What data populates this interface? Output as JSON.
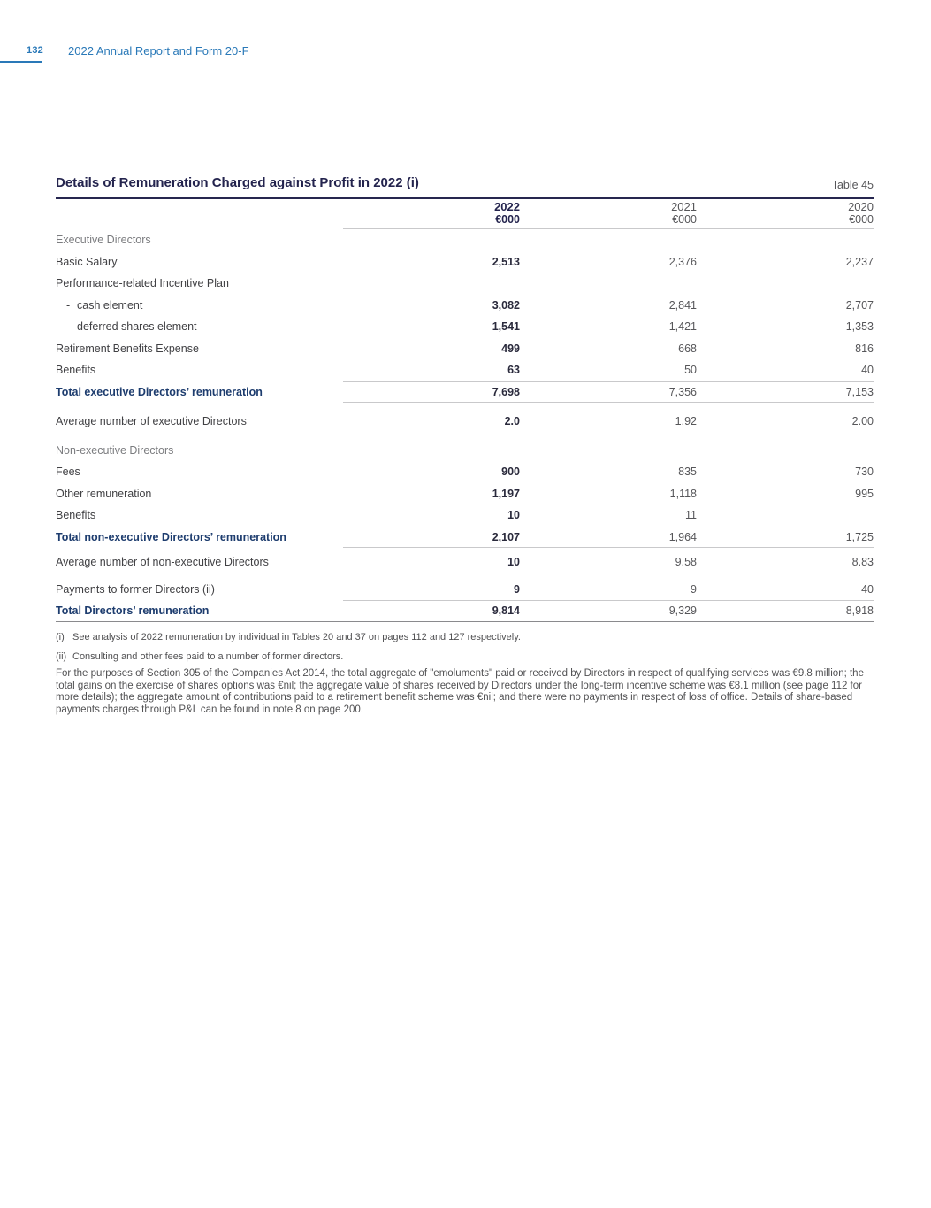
{
  "page": {
    "number": "132",
    "report_title": "2022 Annual Report and Form 20-F"
  },
  "colors": {
    "accent_blue": "#2a79b8",
    "navy": "#24244e",
    "total_navy": "#1d3c6e",
    "text_gray": "#565659",
    "rule_light": "#c9c9cb"
  },
  "table": {
    "title": "Details of Remuneration Charged against Profit in 2022 (i)",
    "table_ref": "Table 45",
    "columns": [
      {
        "year": "2022",
        "unit": "€000"
      },
      {
        "year": "2021",
        "unit": "€000"
      },
      {
        "year": "2020",
        "unit": "€000"
      }
    ],
    "rows": [
      {
        "type": "section",
        "label": "Executive Directors"
      },
      {
        "type": "data",
        "label": "Basic Salary",
        "v2022": "2,513",
        "v2021": "2,376",
        "v2020": "2,237"
      },
      {
        "type": "plain",
        "label": "Performance-related Incentive Plan"
      },
      {
        "type": "indent",
        "dash": "-",
        "label": "cash element",
        "v2022": "3,082",
        "v2021": "2,841",
        "v2020": "2,707"
      },
      {
        "type": "indent",
        "dash": "-",
        "label": "deferred shares element",
        "v2022": "1,541",
        "v2021": "1,421",
        "v2020": "1,353"
      },
      {
        "type": "data",
        "label": "Retirement Benefits Expense",
        "v2022": "499",
        "v2021": "668",
        "v2020": "816"
      },
      {
        "type": "data",
        "label": "Benefits",
        "v2022": "63",
        "v2021": "50",
        "v2020": "40"
      },
      {
        "type": "total",
        "label": "Total executive Directors’ remuneration",
        "v2022": "7,698",
        "v2021": "7,356",
        "v2020": "7,153"
      },
      {
        "type": "data",
        "label": "Average number of executive Directors",
        "v2022": "2.0",
        "v2021": "1.92",
        "v2020": "2.00"
      },
      {
        "type": "section",
        "label": "Non-executive Directors"
      },
      {
        "type": "data",
        "label": "Fees",
        "v2022": "900",
        "v2021": "835",
        "v2020": "730"
      },
      {
        "type": "data",
        "label": "Other remuneration",
        "v2022": "1,197",
        "v2021": "1,118",
        "v2020": "995"
      },
      {
        "type": "data",
        "label": "Benefits",
        "v2022": "10",
        "v2021": "11",
        "v2020": ""
      },
      {
        "type": "total",
        "label": "Total non-executive Directors’ remuneration",
        "v2022": "2,107",
        "v2021": "1,964",
        "v2020": "1,725"
      },
      {
        "type": "data",
        "label": "Average number of non-executive Directors",
        "v2022": "10",
        "v2021": "9.58",
        "v2020": "8.83"
      },
      {
        "type": "data",
        "label": "Payments to former Directors (ii)",
        "v2022": "9",
        "v2021": "9",
        "v2020": "40"
      },
      {
        "type": "total",
        "label": "Total Directors’ remuneration",
        "v2022": "9,814",
        "v2021": "9,329",
        "v2020": "8,918"
      }
    ]
  },
  "footnotes": [
    {
      "marker": "(i)",
      "text": "See analysis of 2022 remuneration by individual in Tables 20 and 37 on pages 112 and 127 respectively."
    },
    {
      "marker": "(ii)",
      "text": "Consulting and other fees paid to a number of former directors."
    }
  ],
  "paragraph": "For the purposes of Section 305 of the Companies Act 2014, the total aggregate of \"emoluments\" paid or received by Directors in respect of qualifying services was €9.8 million; the total gains on the exercise of shares options was €nil; the aggregate value of shares received by Directors under the long-term incentive scheme was €8.1 million (see page 112 for more details); the aggregate amount of contributions paid to a retirement benefit scheme was €nil; and there were no payments in respect of loss of office. Details of share-based payments charges through P&L can be found in note 8 on page 200."
}
